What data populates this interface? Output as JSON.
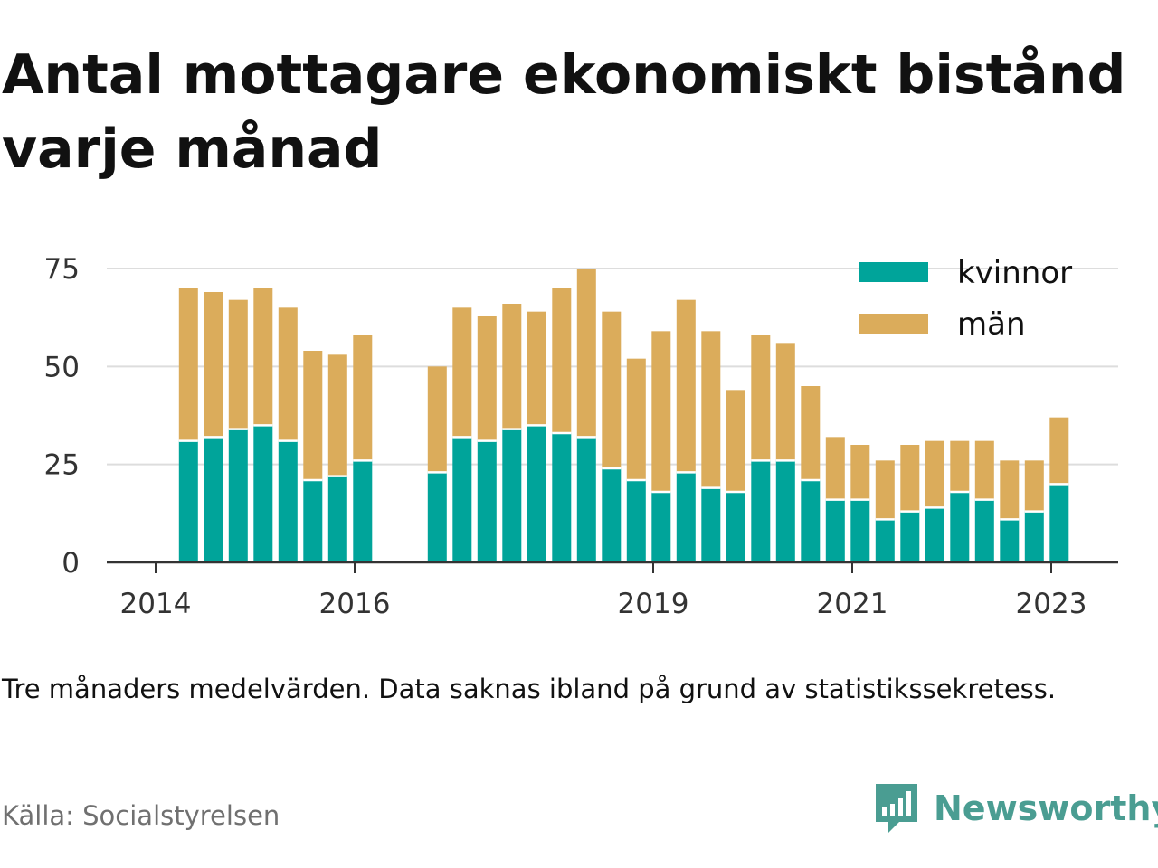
{
  "title": "Antal mottagare ekonomiskt bistånd varje månad",
  "note": "Tre månaders medelvärden. Data saknas ibland på grund av statistikssekretess.",
  "source": "Källa: Socialstyrelsen",
  "brand": {
    "name": "Newsworthy",
    "icon": "newsworthy-logo-icon",
    "color": "#4a9d92"
  },
  "colors": {
    "kvinnor": "#00a49a",
    "man": "#dbac5b",
    "grid": "#dddddd",
    "axis": "#333333"
  },
  "chart_data": {
    "type": "bar",
    "stacked": true,
    "legend_position": "top-right",
    "grid": "horizontal",
    "ylim": [
      0,
      75
    ],
    "yticks": [
      0,
      25,
      50,
      75
    ],
    "xticks": [
      {
        "label": "2014",
        "x": 2014.0
      },
      {
        "label": "2016",
        "x": 2016.0
      },
      {
        "label": "2019",
        "x": 2019.0
      },
      {
        "label": "2021",
        "x": 2021.0
      },
      {
        "label": "2023",
        "x": 2023.0
      }
    ],
    "x": [
      2014.33,
      2014.58,
      2014.83,
      2015.08,
      2015.33,
      2015.58,
      2015.83,
      2016.08,
      2016.83,
      2017.08,
      2017.33,
      2017.58,
      2017.83,
      2018.08,
      2018.33,
      2018.58,
      2018.83,
      2019.08,
      2019.33,
      2019.58,
      2019.83,
      2020.08,
      2020.33,
      2020.58,
      2020.83,
      2021.08,
      2021.33,
      2021.58,
      2021.83,
      2022.08,
      2022.33,
      2022.58,
      2022.83,
      2023.08
    ],
    "series": [
      {
        "name": "kvinnor",
        "color": "#00a49a",
        "values": [
          31,
          32,
          34,
          35,
          31,
          21,
          22,
          26,
          23,
          32,
          31,
          34,
          35,
          33,
          32,
          24,
          21,
          18,
          23,
          19,
          18,
          26,
          26,
          21,
          16,
          16,
          11,
          13,
          14,
          18,
          16,
          11,
          13,
          20
        ]
      },
      {
        "name": "män",
        "color": "#dbac5b",
        "values": [
          39,
          37,
          33,
          35,
          34,
          33,
          31,
          32,
          27,
          33,
          32,
          32,
          29,
          37,
          43,
          40,
          31,
          41,
          44,
          40,
          26,
          32,
          30,
          24,
          16,
          14,
          15,
          17,
          17,
          13,
          15,
          15,
          13,
          17
        ]
      }
    ]
  }
}
